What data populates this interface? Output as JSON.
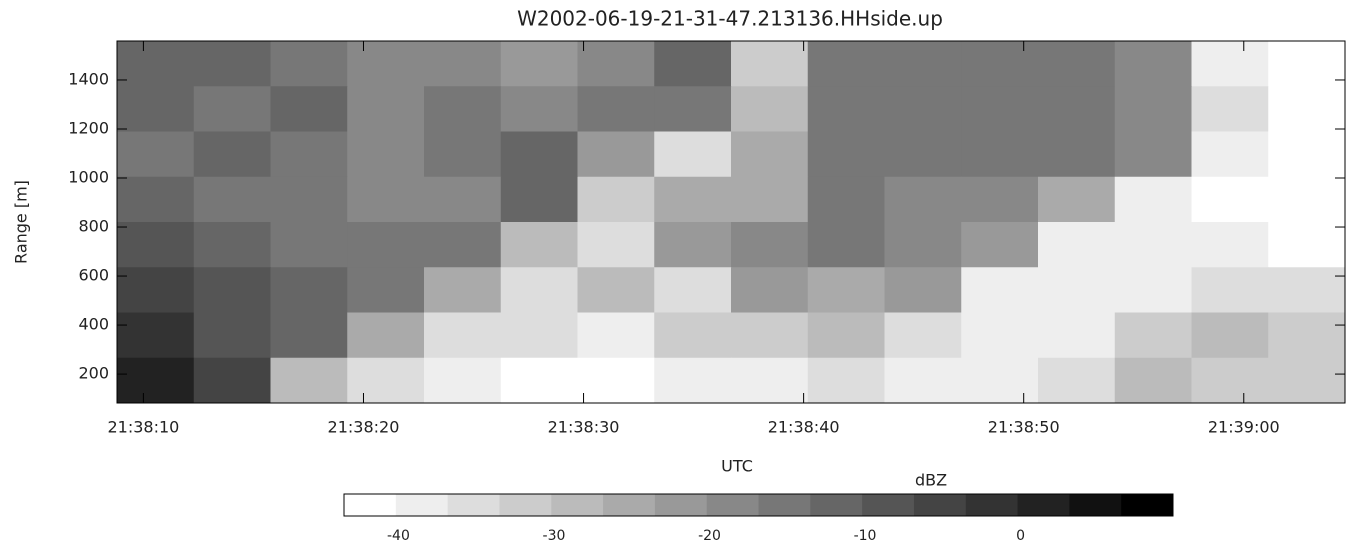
{
  "chart_data": {
    "type": "heatmap",
    "title": "W2002-06-19-21-31-47.213136.HHside.up",
    "x_label": "UTC",
    "y_label": "Range [m]",
    "xlim": [
      8.8,
      64.6
    ],
    "xticks": [
      {
        "value": 10,
        "label": "21:38:10"
      },
      {
        "value": 20,
        "label": "21:38:20"
      },
      {
        "value": 30,
        "label": "21:38:30"
      },
      {
        "value": 40,
        "label": "21:38:40"
      },
      {
        "value": 50,
        "label": "21:38:50"
      },
      {
        "value": 60,
        "label": "21:39:00"
      }
    ],
    "ylim": [
      82,
      1559
    ],
    "yticks": [
      200,
      400,
      600,
      800,
      1000,
      1200,
      1400
    ],
    "z": [
      [
        -12,
        -12,
        -14,
        -18,
        -18,
        -22,
        -18,
        -12,
        -32,
        -14,
        -16,
        -14,
        -16,
        -18,
        -38,
        -42
      ],
      [
        -12,
        -14,
        -12,
        -18,
        -16,
        -20,
        -14,
        -16,
        -30,
        -16,
        -14,
        -14,
        -16,
        -18,
        -36,
        -42
      ],
      [
        -14,
        -12,
        -16,
        -20,
        -16,
        -12,
        -22,
        -34,
        -26,
        -14,
        -14,
        -16,
        -16,
        -20,
        -40,
        -42
      ],
      [
        -12,
        -14,
        -14,
        -18,
        -18,
        -12,
        -32,
        -24,
        -24,
        -14,
        -18,
        -20,
        -24,
        -38,
        -42,
        -42
      ],
      [
        -10,
        -12,
        -14,
        -16,
        -14,
        -28,
        -34,
        -22,
        -20,
        -16,
        -20,
        -22,
        -38,
        -40,
        -40,
        -42
      ],
      [
        -6,
        -10,
        -12,
        -14,
        -26,
        -36,
        -30,
        -36,
        -22,
        -24,
        -22,
        -40,
        -40,
        -38,
        -34,
        -36
      ],
      [
        -2,
        -8,
        -12,
        -26,
        -36,
        -36,
        -38,
        -32,
        -32,
        -28,
        -34,
        -40,
        -38,
        -32,
        -30,
        -32
      ],
      [
        2,
        -4,
        -30,
        -34,
        -38,
        -42,
        -42,
        -40,
        -38,
        -36,
        -38,
        -40,
        -36,
        -30,
        -32,
        -32
      ]
    ],
    "colorbar": {
      "label": "dBZ",
      "lim": [
        -43.5,
        9.8
      ],
      "ticks": [
        -40,
        -30,
        -20,
        -10,
        0
      ],
      "levels": 16
    }
  }
}
